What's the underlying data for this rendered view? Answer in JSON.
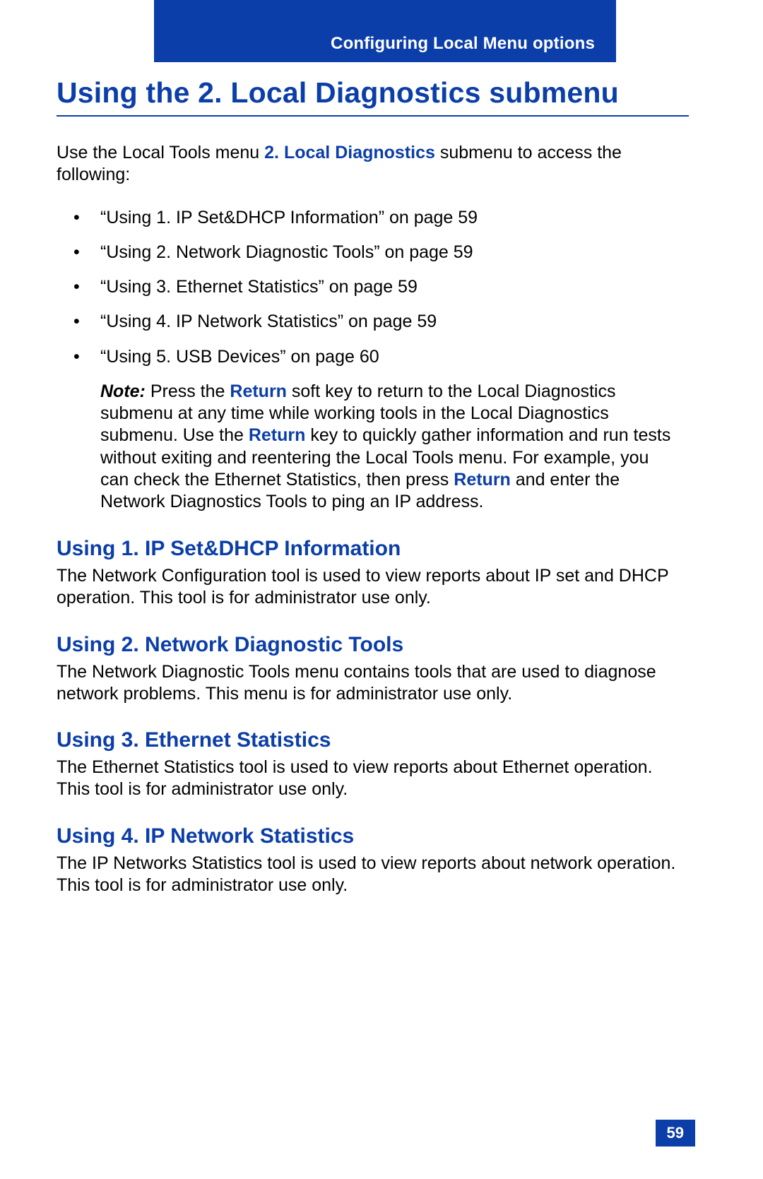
{
  "colors": {
    "brand_blue": "#0b3ea8",
    "text": "#000000",
    "bg": "#ffffff",
    "white": "#ffffff"
  },
  "header": {
    "breadcrumb": "Configuring Local Menu options"
  },
  "title": "Using the 2. Local Diagnostics submenu",
  "intro": {
    "pre": "Use the Local Tools menu ",
    "bold": "2. Local Diagnostics",
    "post": " submenu to access the following:"
  },
  "bullets": [
    "“Using 1. IP Set&DHCP Information” on page 59",
    "“Using 2. Network Diagnostic Tools” on page 59",
    "“Using 3. Ethernet Statistics” on page 59",
    "“Using 4. IP Network Statistics” on page 59",
    "“Using 5. USB Devices” on page 60"
  ],
  "note": {
    "label": "Note:",
    "seg1": " Press the ",
    "kw1": "Return",
    "seg2": " soft key to return to the Local Diagnostics submenu at any time while working tools in the Local Diagnostics submenu. Use the ",
    "kw2": "Return",
    "seg3": " key to quickly gather information and run tests without exiting and reentering the Local Tools menu. For example, you can check the Ethernet Statistics, then press ",
    "kw3": "Return",
    "seg4": " and enter the Network Diagnostics Tools to ping an IP address."
  },
  "sections": [
    {
      "heading": "Using 1. IP Set&DHCP Information",
      "body": "The Network Configuration tool is used to view reports about IP set and DHCP operation. This tool is for administrator use only."
    },
    {
      "heading": "Using 2. Network Diagnostic Tools",
      "body": "The Network Diagnostic Tools menu contains tools that are used to diagnose network problems. This menu is for administrator use only."
    },
    {
      "heading": "Using 3. Ethernet Statistics",
      "body": "The Ethernet Statistics tool is used to view reports about Ethernet operation. This tool is for administrator use only."
    },
    {
      "heading": "Using 4. IP Network Statistics",
      "body": "The IP Networks Statistics tool is used to view reports about network operation. This tool is for administrator use only."
    }
  ],
  "page_number": "59"
}
